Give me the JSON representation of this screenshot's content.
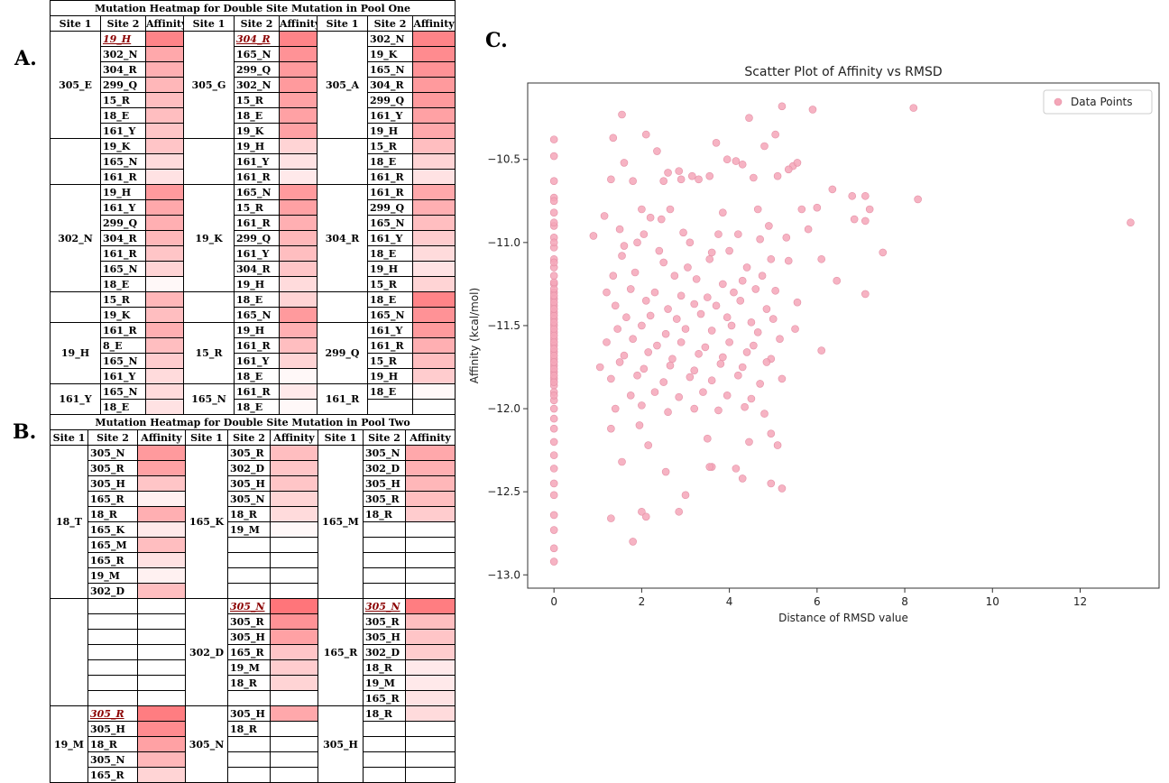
{
  "panels": {
    "a": "A.",
    "b": "B.",
    "c": "C."
  },
  "heatmap_a": {
    "title": "Mutation Heatmap for Double Site Mutation in Pool One",
    "headers": [
      "Site 1",
      "Site 2",
      "Affinity",
      "Site 1",
      "Site 2",
      "Affinity",
      "Site 1",
      "Site 2",
      "Affinity"
    ],
    "groups": [
      [
        {
          "site1": "305_E",
          "rows": [
            [
              "19_H",
              0.85,
              true
            ],
            [
              "302_N",
              0.6
            ],
            [
              "304_R",
              0.55
            ],
            [
              "299_Q",
              0.5
            ],
            [
              "15_R",
              0.45
            ],
            [
              "18_E",
              0.45
            ],
            [
              "161_Y",
              0.4
            ]
          ]
        },
        {
          "site1": "305_G",
          "rows": [
            [
              "304_R",
              0.85,
              true
            ],
            [
              "165_N",
              0.75
            ],
            [
              "299_Q",
              0.7
            ],
            [
              "302_N",
              0.7
            ],
            [
              "15_R",
              0.65
            ],
            [
              "18_E",
              0.65
            ],
            [
              "19_K",
              0.65
            ]
          ]
        },
        {
          "site1": "305_A",
          "rows": [
            [
              "302_N",
              0.85
            ],
            [
              "19_K",
              0.8
            ],
            [
              "165_N",
              0.75
            ],
            [
              "304_R",
              0.7
            ],
            [
              "299_Q",
              0.7
            ],
            [
              "161_Y",
              0.65
            ],
            [
              "19_H",
              0.6
            ]
          ]
        }
      ],
      [
        {
          "site1": "",
          "rows": [
            [
              "19_K",
              0.4
            ],
            [
              "165_N",
              0.25
            ],
            [
              "161_R",
              0.2
            ]
          ]
        },
        {
          "site1": "",
          "rows": [
            [
              "19_H",
              0.3
            ],
            [
              "161_Y",
              0.2
            ],
            [
              "161_R",
              0.15
            ]
          ]
        },
        {
          "site1": "",
          "rows": [
            [
              "15_R",
              0.45
            ],
            [
              "18_E",
              0.3
            ],
            [
              "161_R",
              0.2
            ]
          ]
        }
      ],
      [
        {
          "site1": "302_N",
          "rows": [
            [
              "19_H",
              0.7
            ],
            [
              "161_Y",
              0.6
            ],
            [
              "299_Q",
              0.55
            ],
            [
              "304_R",
              0.5
            ],
            [
              "161_R",
              0.4
            ],
            [
              "165_N",
              0.3
            ],
            [
              "18_E",
              0.05
            ]
          ]
        },
        {
          "site1": "19_K",
          "rows": [
            [
              "165_N",
              0.7
            ],
            [
              "15_R",
              0.65
            ],
            [
              "161_R",
              0.55
            ],
            [
              "299_Q",
              0.5
            ],
            [
              "161_Y",
              0.45
            ],
            [
              "304_R",
              0.4
            ],
            [
              "19_H",
              0.25
            ]
          ]
        },
        {
          "site1": "304_R",
          "rows": [
            [
              "161_R",
              0.6
            ],
            [
              "299_Q",
              0.55
            ],
            [
              "165_N",
              0.45
            ],
            [
              "161_Y",
              0.35
            ],
            [
              "18_E",
              0.25
            ],
            [
              "19_H",
              0.2
            ],
            [
              "15_R",
              0.3
            ]
          ]
        }
      ],
      [
        {
          "site1": "",
          "rows": [
            [
              "15_R",
              0.5
            ],
            [
              "19_K",
              0.45
            ]
          ]
        },
        {
          "site1": "",
          "rows": [
            [
              "18_E",
              0.3
            ],
            [
              "165_N",
              0.7
            ]
          ]
        },
        {
          "site1": "",
          "rows": [
            [
              "18_E",
              0.85
            ],
            [
              "165_N",
              0.75
            ]
          ]
        }
      ],
      [
        {
          "site1": "19_H",
          "rows": [
            [
              "161_R",
              0.55
            ],
            [
              "8_E",
              0.45
            ],
            [
              "165_N",
              0.35
            ],
            [
              "161_Y",
              0.25
            ]
          ]
        },
        {
          "site1": "15_R",
          "rows": [
            [
              "19_H",
              0.55
            ],
            [
              "161_R",
              0.45
            ],
            [
              "161_Y",
              0.3
            ],
            [
              "18_E",
              0.05
            ]
          ]
        },
        {
          "site1": "299_Q",
          "rows": [
            [
              "161_Y",
              0.7
            ],
            [
              "161_R",
              0.55
            ],
            [
              "15_R",
              0.45
            ],
            [
              "19_H",
              0.35
            ]
          ]
        }
      ],
      [
        {
          "site1": "161_Y",
          "rows": [
            [
              "165_N",
              0.25
            ],
            [
              "18_E",
              0.2
            ]
          ]
        },
        {
          "site1": "165_N",
          "rows": [
            [
              "161_R",
              0.15
            ],
            [
              "18_E",
              0.05
            ]
          ]
        },
        {
          "site1": "161_R",
          "rows": [
            [
              "18_E",
              0.05
            ]
          ]
        }
      ]
    ]
  },
  "heatmap_b": {
    "title": "Mutation Heatmap for Double Site Mutation in Pool Two",
    "headers": [
      "Site 1",
      "Site 2",
      "Affinity",
      "Site 1",
      "Site 2",
      "Affinity",
      "Site 1",
      "Site 2",
      "Affinity"
    ],
    "groups": [
      [
        {
          "site1": "18_T",
          "rows": [
            [
              "305_N",
              0.7
            ],
            [
              "305_R",
              0.65
            ],
            [
              "305_H",
              0.4
            ],
            [
              "165_R",
              0.1
            ],
            [
              "18_R",
              0.55
            ],
            [
              "165_K",
              0.15
            ],
            [
              "165_M",
              0.45
            ],
            [
              "165_R",
              0.2
            ],
            [
              "19_M",
              0.1
            ],
            [
              "302_D",
              0.45
            ]
          ]
        },
        {
          "site1": "165_K",
          "rows": [
            [
              "305_R",
              0.45
            ],
            [
              "302_D",
              0.4
            ],
            [
              "305_H",
              0.4
            ],
            [
              "305_N",
              0.3
            ],
            [
              "18_R",
              0.25
            ],
            [
              "19_M",
              0.05
            ]
          ]
        },
        {
          "site1": "165_M",
          "rows": [
            [
              "305_N",
              0.6
            ],
            [
              "302_D",
              0.55
            ],
            [
              "305_H",
              0.5
            ],
            [
              "305_R",
              0.45
            ],
            [
              "18_R",
              0.35
            ]
          ]
        }
      ],
      [
        {
          "site1": "",
          "rows": []
        },
        {
          "site1": "302_D",
          "rows": [
            [
              "305_N",
              0.95,
              true
            ],
            [
              "305_R",
              0.75
            ],
            [
              "305_H",
              0.65
            ],
            [
              "165_R",
              0.4
            ],
            [
              "19_M",
              0.35
            ],
            [
              "18_R",
              0.3
            ]
          ]
        },
        {
          "site1": "165_R",
          "rows": [
            [
              "305_N",
              0.9,
              true
            ],
            [
              "305_R",
              0.45
            ],
            [
              "305_H",
              0.4
            ],
            [
              "302_D",
              0.35
            ],
            [
              "18_R",
              0.15
            ],
            [
              "19_M",
              0.15
            ],
            [
              "165_R",
              0.2
            ]
          ]
        }
      ],
      [
        {
          "site1": "19_M",
          "rows": [
            [
              "305_R",
              0.9,
              true
            ],
            [
              "305_H",
              0.8
            ],
            [
              "18_R",
              0.65
            ],
            [
              "305_N",
              0.5
            ],
            [
              "165_R",
              0.3
            ]
          ]
        },
        {
          "site1": "305_N",
          "rows": [
            [
              "305_H",
              0.6
            ],
            [
              "18_R",
              0.0
            ]
          ]
        },
        {
          "site1": "305_H",
          "rows": [
            [
              "18_R",
              0.25
            ]
          ]
        }
      ]
    ]
  },
  "chart_data": {
    "type": "scatter",
    "title": "Scatter Plot of Affinity vs RMSD",
    "xlabel": "Distance of RMSD value",
    "ylabel": "Affinity (kcal/mol)",
    "xlim": [
      -0.6,
      13.8
    ],
    "ylim": [
      -13.08,
      -10.04
    ],
    "xticks": [
      0,
      2,
      4,
      6,
      8,
      10,
      12
    ],
    "yticks": [
      -13.0,
      -12.5,
      -12.0,
      -11.5,
      -11.0,
      -10.5
    ],
    "ytick_labels": [
      "−13.0",
      "−12.5",
      "−12.0",
      "−11.5",
      "−11.0",
      "−10.5"
    ],
    "legend": {
      "position": "top-right",
      "label": "Data Points"
    },
    "point_color": "#f4a6b8",
    "series": [
      {
        "name": "Data Points",
        "x": [
          0,
          0,
          0,
          0,
          0,
          0,
          0,
          0,
          0,
          0,
          0,
          0,
          0,
          0,
          0,
          0,
          0,
          0,
          0,
          0,
          0,
          0,
          0,
          0,
          0,
          0,
          0,
          0,
          0,
          0,
          0,
          0,
          0,
          0,
          0,
          0,
          0,
          0,
          0,
          0,
          0,
          0,
          0,
          0,
          0,
          0,
          0,
          0,
          0,
          0,
          0,
          0,
          0,
          0,
          0,
          0,
          0,
          0,
          0,
          0,
          0,
          0,
          1.55,
          2.1,
          2.35,
          1.35,
          3.3,
          1.6,
          2.6,
          2.85,
          3.7,
          3.95,
          4.45,
          5.2,
          5.9,
          8.2,
          4.15,
          4.3,
          5.05,
          4.8,
          5.45,
          5.55,
          5.35,
          2.9,
          3.15,
          1.3,
          1.8,
          2.5,
          3.55,
          4.55,
          5.1,
          6.35,
          1.15,
          2.2,
          2.65,
          3.85,
          4.65,
          5.65,
          6.8,
          7.1,
          7.2,
          8.3,
          1.5,
          2.0,
          2.45,
          6.0,
          6.85,
          7.1,
          4.9,
          13.15,
          0.9,
          1.6,
          2.05,
          2.95,
          3.75,
          4.2,
          4.7,
          5.3,
          5.8,
          7.5,
          1.9,
          2.4,
          3.1,
          3.6,
          4.0,
          5.35,
          6.1,
          1.55,
          2.5,
          3.05,
          3.55,
          4.4,
          4.95,
          6.45,
          1.35,
          1.85,
          2.75,
          3.25,
          3.85,
          4.3,
          4.75,
          7.1,
          1.2,
          1.75,
          2.3,
          2.9,
          3.5,
          4.1,
          4.6,
          5.05,
          1.4,
          2.1,
          2.6,
          3.2,
          3.7,
          4.25,
          4.85,
          5.55,
          1.65,
          2.2,
          2.8,
          3.35,
          3.95,
          4.5,
          5.0,
          1.45,
          2.0,
          2.55,
          3.0,
          3.6,
          4.05,
          4.65,
          5.5,
          1.2,
          1.8,
          2.35,
          2.9,
          3.45,
          4.0,
          4.55,
          5.15,
          1.6,
          2.15,
          2.7,
          3.3,
          3.85,
          4.4,
          4.95,
          6.1,
          1.05,
          1.5,
          2.05,
          2.65,
          3.2,
          3.8,
          4.3,
          4.85,
          1.3,
          1.9,
          2.5,
          3.1,
          3.6,
          4.2,
          4.7,
          5.2,
          1.75,
          2.3,
          2.85,
          3.4,
          3.95,
          4.5,
          1.4,
          2.0,
          2.6,
          3.2,
          3.75,
          4.35,
          4.8,
          1.3,
          1.95,
          2.15,
          3.5,
          4.45,
          4.95,
          5.1,
          3.6,
          4.3,
          1.55,
          2.0,
          2.55,
          3.0,
          3.55,
          4.15,
          4.95,
          5.2,
          2.1,
          2.85,
          1.8,
          1.3
        ],
        "y": [
          -10.38,
          -10.48,
          -10.63,
          -10.73,
          -10.82,
          -10.9,
          -10.97,
          -11.03,
          -11.1,
          -11.15,
          -11.2,
          -11.25,
          -11.3,
          -11.34,
          -11.38,
          -11.42,
          -11.46,
          -11.5,
          -11.54,
          -11.58,
          -11.62,
          -11.66,
          -11.7,
          -11.74,
          -11.78,
          -11.82,
          -11.86,
          -11.9,
          -11.95,
          -12.0,
          -12.06,
          -12.12,
          -12.2,
          -12.28,
          -12.36,
          -12.45,
          -12.52,
          -12.64,
          -12.73,
          -12.84,
          -12.92,
          -11.28,
          -11.36,
          -11.44,
          -11.52,
          -11.6,
          -11.68,
          -11.76,
          -11.84,
          -11.92,
          -10.75,
          -10.88,
          -11.0,
          -11.12,
          -11.24,
          -11.32,
          -11.4,
          -11.48,
          -11.56,
          -11.64,
          -11.72,
          -11.8,
          -10.23,
          -10.35,
          -10.45,
          -10.37,
          -10.62,
          -10.52,
          -10.58,
          -10.57,
          -10.4,
          -10.5,
          -10.25,
          -10.18,
          -10.2,
          -10.19,
          -10.51,
          -10.53,
          -10.35,
          -10.42,
          -10.54,
          -10.52,
          -10.56,
          -10.62,
          -10.6,
          -10.62,
          -10.63,
          -10.63,
          -10.6,
          -10.61,
          -10.6,
          -10.68,
          -10.84,
          -10.85,
          -10.8,
          -10.82,
          -10.8,
          -10.8,
          -10.72,
          -10.72,
          -10.8,
          -10.74,
          -10.92,
          -10.8,
          -10.86,
          -10.79,
          -10.86,
          -10.87,
          -10.9,
          -10.88,
          -10.96,
          -11.02,
          -10.95,
          -10.94,
          -10.95,
          -10.95,
          -10.98,
          -10.97,
          -10.92,
          -11.06,
          -11.0,
          -11.05,
          -11.0,
          -11.06,
          -11.05,
          -11.11,
          -11.1,
          -11.08,
          -11.12,
          -11.15,
          -11.1,
          -11.15,
          -11.1,
          -11.23,
          -11.2,
          -11.18,
          -11.2,
          -11.22,
          -11.25,
          -11.23,
          -11.2,
          -11.31,
          -11.3,
          -11.28,
          -11.3,
          -11.32,
          -11.33,
          -11.3,
          -11.28,
          -11.29,
          -11.38,
          -11.35,
          -11.4,
          -11.37,
          -11.38,
          -11.35,
          -11.4,
          -11.36,
          -11.45,
          -11.44,
          -11.46,
          -11.43,
          -11.45,
          -11.48,
          -11.46,
          -11.52,
          -11.5,
          -11.55,
          -11.52,
          -11.53,
          -11.5,
          -11.54,
          -11.52,
          -11.6,
          -11.58,
          -11.62,
          -11.6,
          -11.63,
          -11.6,
          -11.62,
          -11.58,
          -11.68,
          -11.66,
          -11.7,
          -11.67,
          -11.69,
          -11.66,
          -11.7,
          -11.65,
          -11.75,
          -11.72,
          -11.76,
          -11.74,
          -11.77,
          -11.73,
          -11.75,
          -11.72,
          -11.82,
          -11.8,
          -11.84,
          -11.81,
          -11.83,
          -11.8,
          -11.85,
          -11.82,
          -11.92,
          -11.9,
          -11.93,
          -11.9,
          -11.92,
          -11.94,
          -12.0,
          -11.98,
          -12.02,
          -12.0,
          -12.01,
          -11.99,
          -12.03,
          -12.12,
          -12.1,
          -12.22,
          -12.18,
          -12.2,
          -12.15,
          -12.22,
          -12.35,
          -12.42,
          -12.32,
          -12.62,
          -12.38,
          -12.52,
          -12.35,
          -12.36,
          -12.45,
          -12.48,
          -12.65,
          -12.62,
          -12.8,
          -12.66
        ]
      }
    ]
  }
}
